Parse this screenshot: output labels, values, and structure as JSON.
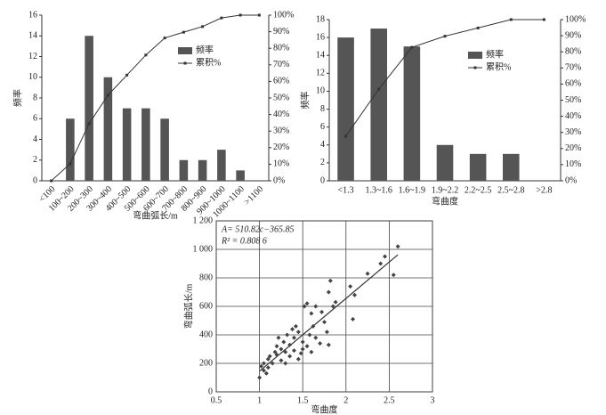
{
  "chart_data": [
    {
      "type": "combo",
      "xlabel": "弯曲弧长/m",
      "ylabel": "频率",
      "categories": [
        "<100",
        "100~200",
        "200~300",
        "300~400",
        "400~500",
        "500~600",
        "600~700",
        "700~800",
        "800~900",
        "900~1000",
        "1000~1100",
        ">1100"
      ],
      "series": [
        {
          "name": "频率",
          "kind": "bar",
          "color": "#555555",
          "values": [
            0,
            6,
            14,
            10,
            7,
            7,
            6,
            2,
            2,
            3,
            1,
            0
          ]
        },
        {
          "name": "累积%",
          "kind": "line",
          "axis": "y2",
          "color": "#333333",
          "values": [
            0,
            10.3,
            34.5,
            51.7,
            63.8,
            75.9,
            86.2,
            89.7,
            93.1,
            98.3,
            100,
            100
          ]
        }
      ],
      "ylim": [
        0,
        16
      ],
      "yticks": [
        0,
        2,
        4,
        6,
        8,
        10,
        12,
        14,
        16
      ],
      "y2lim": [
        0,
        100
      ],
      "y2ticks": [
        {
          "value": 0,
          "label": "0%"
        },
        {
          "value": 10,
          "label": "10%"
        },
        {
          "value": 20,
          "label": "20%"
        },
        {
          "value": 30,
          "label": "30%"
        },
        {
          "value": 40,
          "label": "40%"
        },
        {
          "value": 50,
          "label": "50%"
        },
        {
          "value": 60,
          "label": "60%"
        },
        {
          "value": 70,
          "label": "70%"
        },
        {
          "value": 80,
          "label": "80%"
        },
        {
          "value": 90,
          "label": "90%"
        },
        {
          "value": 100,
          "label": "100%"
        }
      ],
      "rotate_labels": true,
      "legend": "upper right"
    },
    {
      "type": "combo",
      "xlabel": "弯曲度",
      "ylabel": "频率",
      "categories": [
        "<1.3",
        "1.3~1.6",
        "1.6~1.9",
        "1.9~2.2",
        "2.2~2.5",
        "2.5~2.8",
        ">2.8"
      ],
      "series": [
        {
          "name": "频率",
          "kind": "bar",
          "color": "#555555",
          "values": [
            16,
            17,
            15,
            4,
            3,
            3,
            0
          ]
        },
        {
          "name": "累积%",
          "kind": "line",
          "axis": "y2",
          "color": "#333333",
          "values": [
            27.6,
            56.9,
            82.8,
            89.7,
            94.8,
            100,
            100
          ]
        }
      ],
      "ylim": [
        0,
        18
      ],
      "yticks": [
        0,
        2,
        4,
        6,
        8,
        10,
        12,
        14,
        16,
        18
      ],
      "y2lim": [
        0,
        100
      ],
      "y2ticks": [
        {
          "value": 0,
          "label": "0%"
        },
        {
          "value": 10,
          "label": "10%"
        },
        {
          "value": 20,
          "label": "20%"
        },
        {
          "value": 30,
          "label": "30%"
        },
        {
          "value": 40,
          "label": "40%"
        },
        {
          "value": 50,
          "label": "50%"
        },
        {
          "value": 60,
          "label": "60%"
        },
        {
          "value": 70,
          "label": "70%"
        },
        {
          "value": 80,
          "label": "80%"
        },
        {
          "value": 90,
          "label": "90%"
        },
        {
          "value": 100,
          "label": "100%"
        }
      ],
      "rotate_labels": false,
      "legend": "upper right"
    },
    {
      "type": "scatter",
      "xlabel": "弯曲度",
      "ylabel": "弯曲弧长/m",
      "annotations": [
        "A= 510.82c−365.85",
        "R² = 0.808 6"
      ],
      "series": [
        {
          "color": "#444444",
          "x": [
            1.0,
            1.02,
            1.05,
            1.05,
            1.08,
            1.1,
            1.1,
            1.12,
            1.15,
            1.18,
            1.2,
            1.2,
            1.22,
            1.25,
            1.25,
            1.28,
            1.3,
            1.3,
            1.32,
            1.35,
            1.35,
            1.38,
            1.4,
            1.4,
            1.42,
            1.45,
            1.45,
            1.48,
            1.5,
            1.5,
            1.52,
            1.55,
            1.55,
            1.58,
            1.6,
            1.6,
            1.62,
            1.65,
            1.65,
            1.7,
            1.72,
            1.75,
            1.78,
            1.8,
            1.8,
            1.82,
            1.85,
            1.88,
            2.05,
            2.08,
            2.1,
            2.25,
            2.4,
            2.45,
            2.55,
            2.6
          ],
          "values": [
            100,
            180,
            150,
            200,
            130,
            170,
            230,
            250,
            200,
            280,
            260,
            320,
            380,
            220,
            300,
            350,
            200,
            280,
            400,
            250,
            330,
            440,
            290,
            380,
            460,
            420,
            230,
            270,
            350,
            300,
            600,
            620,
            320,
            400,
            550,
            280,
            460,
            600,
            380,
            340,
            560,
            490,
            420,
            700,
            330,
            780,
            600,
            630,
            740,
            510,
            680,
            830,
            900,
            950,
            820,
            1020
          ]
        }
      ],
      "trend_line": {
        "x": [
          1,
          2.6
        ],
        "values": [
          145,
          962
        ],
        "color": "#333333"
      },
      "xlim": [
        0.5,
        3
      ],
      "xticks": [
        0.5,
        1,
        1.5,
        2,
        2.5,
        3
      ],
      "ylim": [
        0,
        1200
      ],
      "yticks": [
        0,
        200,
        400,
        600,
        800,
        {
          "value": 1000,
          "label": "1 000"
        },
        {
          "value": 1200,
          "label": "1 200"
        }
      ],
      "grid": true
    }
  ]
}
